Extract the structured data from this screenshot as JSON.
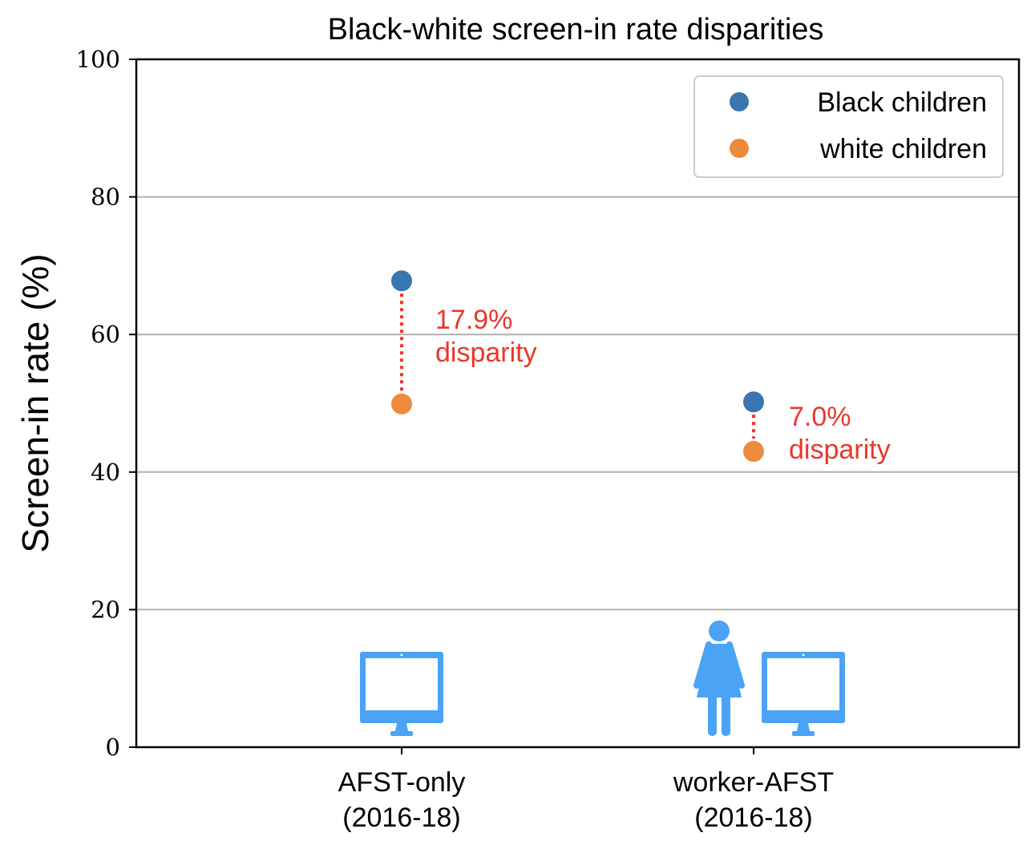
{
  "chart_data": {
    "type": "scatter",
    "title": "Black-white screen-in rate disparities",
    "xlabel": "",
    "ylabel": "Screen-in rate (%)",
    "ylim": [
      0,
      100
    ],
    "yticks": [
      0,
      20,
      40,
      60,
      80,
      100
    ],
    "ytick_labels": [
      "0",
      "20",
      "40",
      "60",
      "80",
      "100"
    ],
    "categories": [
      {
        "line1": "AFST-only",
        "line2": "(2016-18)",
        "icons": [
          "monitor-icon"
        ]
      },
      {
        "line1": "worker-AFST",
        "line2": "(2016-18)",
        "icons": [
          "person-icon",
          "monitor-icon"
        ]
      }
    ],
    "series": [
      {
        "name": "Black children",
        "color": "#3a75b0",
        "values": [
          67.8,
          50.2
        ]
      },
      {
        "name": "white children",
        "color": "#ee8a3b",
        "values": [
          49.9,
          43.0
        ]
      }
    ],
    "annotations": [
      {
        "line1": "17.9%",
        "line2": "disparity",
        "color": "#e8382b"
      },
      {
        "line1": "7.0%",
        "line2": "disparity",
        "color": "#e8382b"
      }
    ],
    "grid": "horizontal",
    "legend_position": "top-right",
    "icon_color": "#4aa3f5"
  }
}
